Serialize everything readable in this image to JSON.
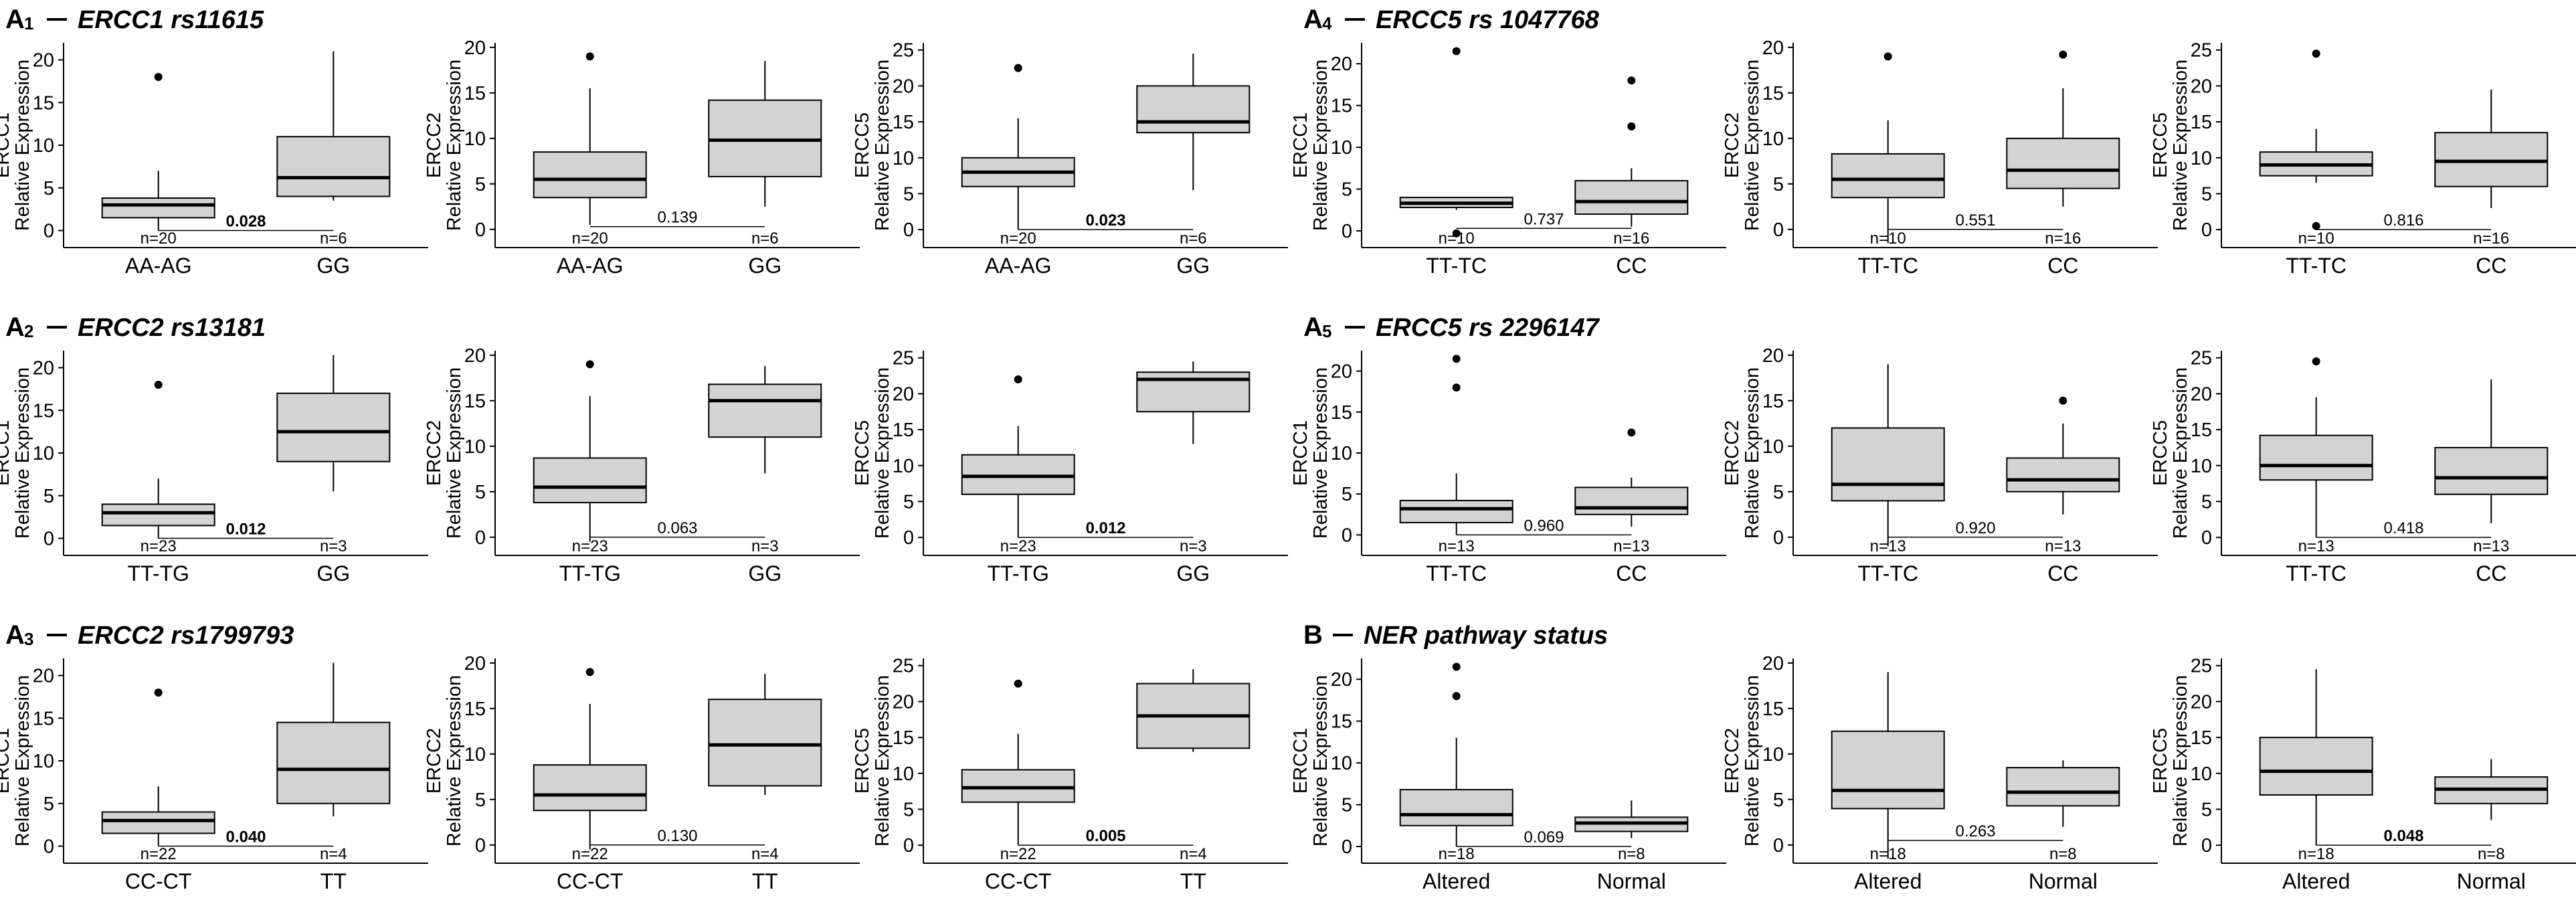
{
  "figure": {
    "colors": {
      "box_fill": "#d3d3d3",
      "stroke": "#000000",
      "text": "#000000",
      "background": "#ffffff"
    }
  },
  "chart_data": [
    {
      "id": "A1",
      "label": "A",
      "subscript": "1",
      "title": "ERCC1 rs11615",
      "type": "boxplot",
      "groups": [
        "AA-AG",
        "GG"
      ],
      "n": [
        "n=20",
        "n=6"
      ],
      "plots": [
        {
          "ylabel": "ERCC1",
          "ylabel2": "Relative Expression",
          "ylim": [
            -2,
            22
          ],
          "yticks": [
            0,
            5,
            10,
            15,
            20
          ],
          "boxes": [
            {
              "min": 0,
              "q1": 1.5,
              "median": 3,
              "q3": 3.8,
              "max": 7,
              "outliers": [
                18
              ]
            },
            {
              "min": 3.5,
              "q1": 4,
              "median": 6.2,
              "q3": 11,
              "max": 21,
              "outliers": []
            }
          ],
          "p": "0.028",
          "p_bold": true,
          "p_line_y": 0
        },
        {
          "ylabel": "ERCC2",
          "ylabel2": "Relative Expression",
          "ylim": [
            -2,
            20.5
          ],
          "yticks": [
            0,
            5,
            10,
            15,
            20
          ],
          "boxes": [
            {
              "min": 0.5,
              "q1": 3.5,
              "median": 5.5,
              "q3": 8.5,
              "max": 15.5,
              "outliers": [
                19
              ]
            },
            {
              "min": 2.5,
              "q1": 5.8,
              "median": 9.8,
              "q3": 14.2,
              "max": 18.5,
              "outliers": []
            }
          ],
          "p": "0.139",
          "p_bold": false,
          "p_line_y": 0.3
        },
        {
          "ylabel": "ERCC5",
          "ylabel2": "Relative Expression",
          "ylim": [
            -2.5,
            26
          ],
          "yticks": [
            0,
            5,
            10,
            15,
            20,
            25
          ],
          "boxes": [
            {
              "min": 0,
              "q1": 6,
              "median": 8,
              "q3": 10,
              "max": 15.5,
              "outliers": [
                22.5
              ]
            },
            {
              "min": 5.5,
              "q1": 13.5,
              "median": 15,
              "q3": 20,
              "max": 24.5,
              "outliers": []
            }
          ],
          "p": "0.023",
          "p_bold": true,
          "p_line_y": 0
        }
      ]
    },
    {
      "id": "A2",
      "label": "A",
      "subscript": "2",
      "title": "ERCC2 rs13181",
      "type": "boxplot",
      "groups": [
        "TT-TG",
        "GG"
      ],
      "n": [
        "n=23",
        "n=3"
      ],
      "plots": [
        {
          "ylabel": "ERCC1",
          "ylabel2": "Relative Expression",
          "ylim": [
            -2,
            22
          ],
          "yticks": [
            0,
            5,
            10,
            15,
            20
          ],
          "boxes": [
            {
              "min": 0,
              "q1": 1.5,
              "median": 3,
              "q3": 4,
              "max": 7,
              "outliers": [
                18
              ]
            },
            {
              "min": 5.5,
              "q1": 9,
              "median": 12.5,
              "q3": 17,
              "max": 21.5,
              "outliers": []
            }
          ],
          "p": "0.012",
          "p_bold": true,
          "p_line_y": 0
        },
        {
          "ylabel": "ERCC2",
          "ylabel2": "Relative Expression",
          "ylim": [
            -2,
            20.5
          ],
          "yticks": [
            0,
            5,
            10,
            15,
            20
          ],
          "boxes": [
            {
              "min": -0.5,
              "q1": 3.8,
              "median": 5.5,
              "q3": 8.7,
              "max": 15.5,
              "outliers": [
                19
              ]
            },
            {
              "min": 7,
              "q1": 11,
              "median": 15,
              "q3": 16.8,
              "max": 18.8,
              "outliers": []
            }
          ],
          "p": "0.063",
          "p_bold": false,
          "p_line_y": 0
        },
        {
          "ylabel": "ERCC5",
          "ylabel2": "Relative Expression",
          "ylim": [
            -2.5,
            26
          ],
          "yticks": [
            0,
            5,
            10,
            15,
            20,
            25
          ],
          "boxes": [
            {
              "min": 0,
              "q1": 6,
              "median": 8.5,
              "q3": 11.5,
              "max": 15.5,
              "outliers": [
                22
              ]
            },
            {
              "min": 13,
              "q1": 17.5,
              "median": 22,
              "q3": 23,
              "max": 24.5,
              "outliers": []
            }
          ],
          "p": "0.012",
          "p_bold": true,
          "p_line_y": 0
        }
      ]
    },
    {
      "id": "A3",
      "label": "A",
      "subscript": "3",
      "title": "ERCC2 rs1799793",
      "type": "boxplot",
      "groups": [
        "CC-CT",
        "TT"
      ],
      "n": [
        "n=22",
        "n=4"
      ],
      "plots": [
        {
          "ylabel": "ERCC1",
          "ylabel2": "Relative Expression",
          "ylim": [
            -2,
            22
          ],
          "yticks": [
            0,
            5,
            10,
            15,
            20
          ],
          "boxes": [
            {
              "min": 0,
              "q1": 1.5,
              "median": 3,
              "q3": 4,
              "max": 7,
              "outliers": [
                18
              ]
            },
            {
              "min": 3.5,
              "q1": 5,
              "median": 9,
              "q3": 14.5,
              "max": 21.5,
              "outliers": []
            }
          ],
          "p": "0.040",
          "p_bold": true,
          "p_line_y": 0
        },
        {
          "ylabel": "ERCC2",
          "ylabel2": "Relative Expression",
          "ylim": [
            -2,
            20.5
          ],
          "yticks": [
            0,
            5,
            10,
            15,
            20
          ],
          "boxes": [
            {
              "min": -0.5,
              "q1": 3.8,
              "median": 5.5,
              "q3": 8.8,
              "max": 15.5,
              "outliers": [
                19
              ]
            },
            {
              "min": 5.5,
              "q1": 6.5,
              "median": 11,
              "q3": 16,
              "max": 18.8,
              "outliers": []
            }
          ],
          "p": "0.130",
          "p_bold": false,
          "p_line_y": 0
        },
        {
          "ylabel": "ERCC5",
          "ylabel2": "Relative Expression",
          "ylim": [
            -2.5,
            26
          ],
          "yticks": [
            0,
            5,
            10,
            15,
            20,
            25
          ],
          "boxes": [
            {
              "min": 0,
              "q1": 6,
              "median": 8,
              "q3": 10.5,
              "max": 15.5,
              "outliers": [
                22.5
              ]
            },
            {
              "min": 13,
              "q1": 13.5,
              "median": 18,
              "q3": 22.5,
              "max": 24.5,
              "outliers": []
            }
          ],
          "p": "0.005",
          "p_bold": true,
          "p_line_y": 0
        }
      ]
    },
    {
      "id": "A4",
      "label": "A",
      "subscript": "4",
      "title": "ERCC5 rs 1047768",
      "type": "boxplot",
      "groups": [
        "TT-TC",
        "CC"
      ],
      "n": [
        "n=10",
        "n=16"
      ],
      "plots": [
        {
          "ylabel": "ERCC1",
          "ylabel2": "Relative Expression",
          "ylim": [
            -2,
            22.5
          ],
          "yticks": [
            0,
            5,
            10,
            15,
            20
          ],
          "boxes": [
            {
              "min": 2.5,
              "q1": 2.8,
              "median": 3.3,
              "q3": 4,
              "max": 4,
              "outliers": [
                21.5,
                -0.3
              ]
            },
            {
              "min": 0.5,
              "q1": 2,
              "median": 3.5,
              "q3": 6,
              "max": 7.5,
              "outliers": [
                18,
                12.5
              ]
            }
          ],
          "p": "0.737",
          "p_bold": false,
          "p_line_y": 0.3
        },
        {
          "ylabel": "ERCC2",
          "ylabel2": "Relative Expression",
          "ylim": [
            -2,
            20.5
          ],
          "yticks": [
            0,
            5,
            10,
            15,
            20
          ],
          "boxes": [
            {
              "min": -1.5,
              "q1": 3.5,
              "median": 5.5,
              "q3": 8.3,
              "max": 12,
              "outliers": [
                19
              ]
            },
            {
              "min": 2.5,
              "q1": 4.5,
              "median": 6.5,
              "q3": 10,
              "max": 15.5,
              "outliers": [
                19.2
              ]
            }
          ],
          "p": "0.551",
          "p_bold": false,
          "p_line_y": 0
        },
        {
          "ylabel": "ERCC5",
          "ylabel2": "Relative Expression",
          "ylim": [
            -2.5,
            26
          ],
          "yticks": [
            0,
            5,
            10,
            15,
            20,
            25
          ],
          "boxes": [
            {
              "min": 6.5,
              "q1": 7.5,
              "median": 9,
              "q3": 10.8,
              "max": 14,
              "outliers": [
                24.5,
                0.5
              ]
            },
            {
              "min": 3,
              "q1": 6,
              "median": 9.5,
              "q3": 13.5,
              "max": 19.5,
              "outliers": []
            }
          ],
          "p": "0.816",
          "p_bold": false,
          "p_line_y": 0
        }
      ]
    },
    {
      "id": "A5",
      "label": "A",
      "subscript": "5",
      "title": "ERCC5 rs 2296147",
      "type": "boxplot",
      "groups": [
        "TT-TC",
        "CC"
      ],
      "n": [
        "n=13",
        "n=13"
      ],
      "plots": [
        {
          "ylabel": "ERCC1",
          "ylabel2": "Relative Expression",
          "ylim": [
            -2.5,
            22.5
          ],
          "yticks": [
            0,
            5,
            10,
            15,
            20
          ],
          "boxes": [
            {
              "min": 0,
              "q1": 1.5,
              "median": 3.2,
              "q3": 4.2,
              "max": 7.5,
              "outliers": [
                21.5,
                18
              ]
            },
            {
              "min": 1,
              "q1": 2.5,
              "median": 3.3,
              "q3": 5.8,
              "max": 7,
              "outliers": [
                12.5
              ]
            }
          ],
          "p": "0.960",
          "p_bold": false,
          "p_line_y": 0
        },
        {
          "ylabel": "ERCC2",
          "ylabel2": "Relative Expression",
          "ylim": [
            -2,
            20.5
          ],
          "yticks": [
            0,
            5,
            10,
            15,
            20
          ],
          "boxes": [
            {
              "min": -1,
              "q1": 4,
              "median": 5.8,
              "q3": 12,
              "max": 19,
              "outliers": []
            },
            {
              "min": 2.5,
              "q1": 5,
              "median": 6.3,
              "q3": 8.7,
              "max": 12.5,
              "outliers": [
                15
              ]
            }
          ],
          "p": "0.920",
          "p_bold": false,
          "p_line_y": 0
        },
        {
          "ylabel": "ERCC5",
          "ylabel2": "Relative Expression",
          "ylim": [
            -2.5,
            26
          ],
          "yticks": [
            0,
            5,
            10,
            15,
            20,
            25
          ],
          "boxes": [
            {
              "min": 0,
              "q1": 8,
              "median": 10,
              "q3": 14.2,
              "max": 19.5,
              "outliers": [
                24.5
              ]
            },
            {
              "min": 2,
              "q1": 6,
              "median": 8.3,
              "q3": 12.5,
              "max": 22,
              "outliers": []
            }
          ],
          "p": "0.418",
          "p_bold": false,
          "p_line_y": 0
        }
      ]
    },
    {
      "id": "B",
      "label": "B",
      "subscript": "",
      "title": "NER pathway status",
      "type": "boxplot",
      "groups": [
        "Altered",
        "Normal"
      ],
      "n": [
        "n=18",
        "n=8"
      ],
      "plots": [
        {
          "ylabel": "ERCC1",
          "ylabel2": "Relative Expression",
          "ylim": [
            -2,
            22.5
          ],
          "yticks": [
            0,
            5,
            10,
            15,
            20
          ],
          "boxes": [
            {
              "min": 0,
              "q1": 2.5,
              "median": 3.8,
              "q3": 6.8,
              "max": 13,
              "outliers": [
                21.5,
                18
              ]
            },
            {
              "min": 1,
              "q1": 1.8,
              "median": 2.8,
              "q3": 3.5,
              "max": 5.5,
              "outliers": []
            }
          ],
          "p": "0.069",
          "p_bold": false,
          "p_line_y": 0
        },
        {
          "ylabel": "ERCC2",
          "ylabel2": "Relative Expression",
          "ylim": [
            -2,
            20.5
          ],
          "yticks": [
            0,
            5,
            10,
            15,
            20
          ],
          "boxes": [
            {
              "min": -1.5,
              "q1": 4,
              "median": 6,
              "q3": 12.5,
              "max": 19,
              "outliers": []
            },
            {
              "min": 2,
              "q1": 4.3,
              "median": 5.8,
              "q3": 8.5,
              "max": 9.3,
              "outliers": []
            }
          ],
          "p": "0.263",
          "p_bold": false,
          "p_line_y": 0.5
        },
        {
          "ylabel": "ERCC5",
          "ylabel2": "Relative Expression",
          "ylim": [
            -2.5,
            26
          ],
          "yticks": [
            0,
            5,
            10,
            15,
            20,
            25
          ],
          "boxes": [
            {
              "min": 0,
              "q1": 7,
              "median": 10.3,
              "q3": 15,
              "max": 24.5,
              "outliers": []
            },
            {
              "min": 3.5,
              "q1": 5.8,
              "median": 7.8,
              "q3": 9.5,
              "max": 12,
              "outliers": []
            }
          ],
          "p": "0.048",
          "p_bold": true,
          "p_line_y": 0
        }
      ]
    }
  ]
}
